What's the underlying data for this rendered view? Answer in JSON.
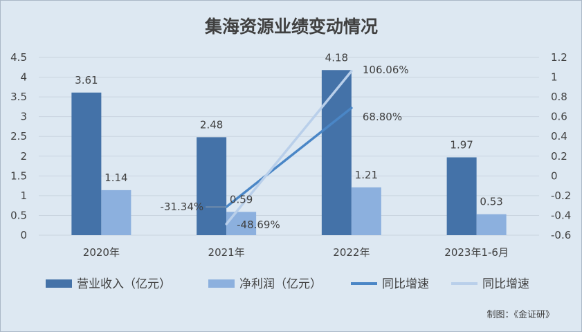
{
  "chart_data": {
    "type": "bar",
    "title": "集海资源业绩变动情况",
    "categories": [
      "2020年",
      "2021年",
      "2022年",
      "2023年1-6月"
    ],
    "series": [
      {
        "name": "营业收入（亿元）",
        "kind": "bar",
        "axis": "left",
        "color": "#4472a8",
        "values": [
          3.61,
          2.48,
          4.18,
          1.97
        ],
        "labels": [
          "3.61",
          "2.48",
          "4.18",
          "1.97"
        ]
      },
      {
        "name": "净利润（亿元）",
        "kind": "bar",
        "axis": "left",
        "color": "#8cb0de",
        "values": [
          1.14,
          0.59,
          1.21,
          0.53
        ],
        "labels": [
          "1.14",
          "0.59",
          "1.21",
          "0.53"
        ]
      },
      {
        "name": "同比增速",
        "kind": "line",
        "axis": "right",
        "color": "#4a86c6",
        "values": [
          null,
          -0.3134,
          0.688,
          null
        ],
        "labels": [
          null,
          "-31.34%",
          "68.80%",
          null
        ]
      },
      {
        "name": "同比增速",
        "kind": "line",
        "axis": "right",
        "color": "#b9cfea",
        "values": [
          null,
          -0.4869,
          1.0606,
          null
        ],
        "labels": [
          null,
          "-48.69%",
          "106.06%",
          null
        ]
      }
    ],
    "y_left": {
      "min": 0,
      "max": 4.5,
      "ticks": [
        "0",
        "0.5",
        "1",
        "1.5",
        "2",
        "2.5",
        "3",
        "3.5",
        "4",
        "4.5"
      ]
    },
    "y_right": {
      "min": -0.6,
      "max": 1.2,
      "ticks": [
        "-0.6",
        "-0.4",
        "-0.2",
        "0",
        "0.2",
        "0.4",
        "0.6",
        "0.8",
        "1",
        "1.2"
      ]
    },
    "legend_position": "bottom",
    "grid": true
  },
  "credit": "制图：《金证研》"
}
